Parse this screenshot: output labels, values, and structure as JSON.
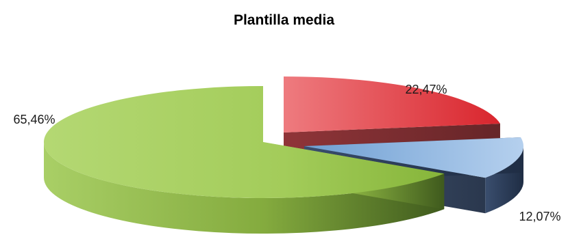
{
  "chart_data": {
    "type": "pie",
    "title": "Plantilla media",
    "slices": [
      {
        "value": 22.47,
        "label": "22,47%",
        "color": "#e4333a"
      },
      {
        "value": 12.07,
        "label": "12,07%",
        "color": "#8cb4e0"
      },
      {
        "value": 65.46,
        "label": "65,46%",
        "color": "#8fbf3a"
      }
    ],
    "style": "3d-exploded",
    "legend": "none"
  }
}
